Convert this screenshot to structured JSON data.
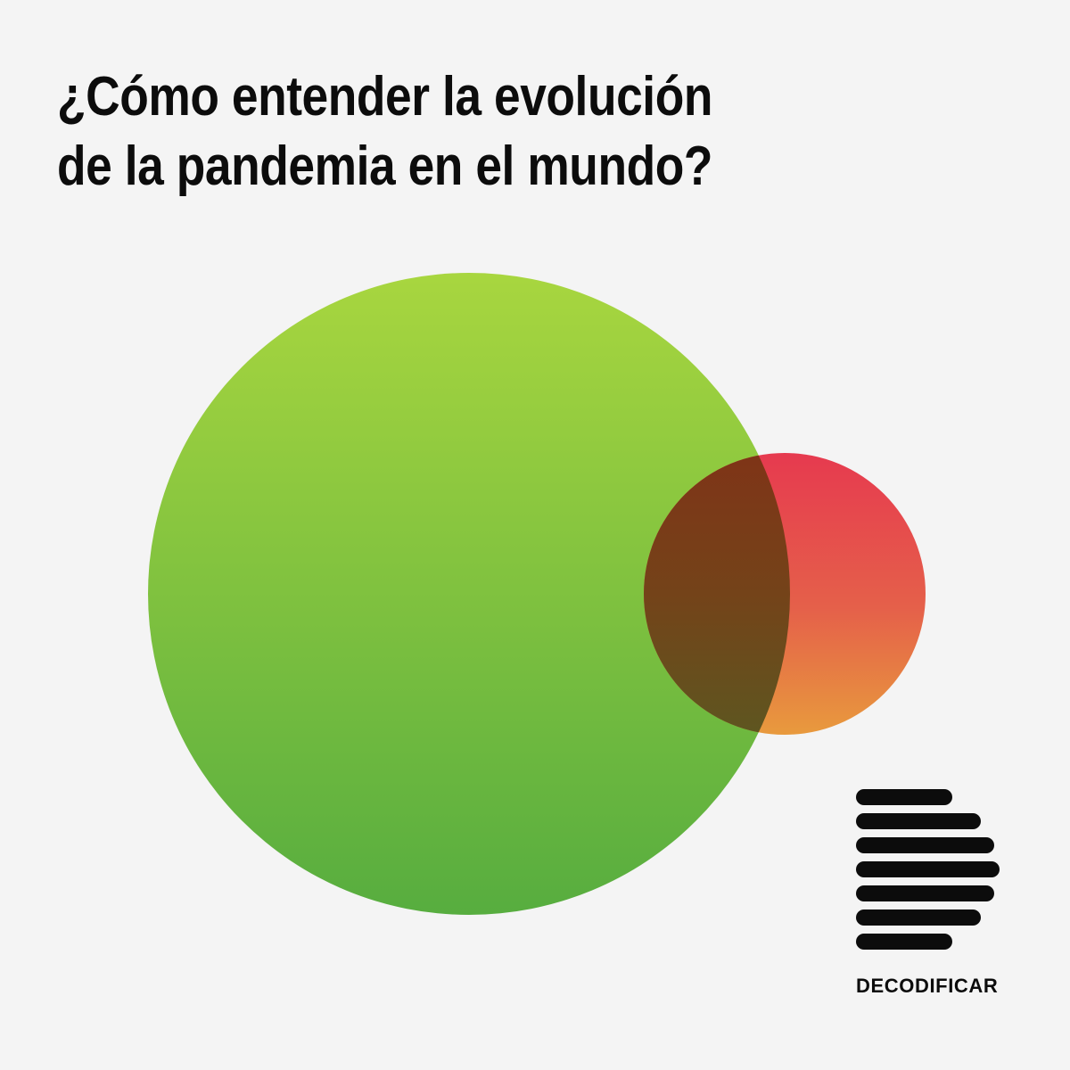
{
  "headline": {
    "line1": "¿Cómo entender la evolución",
    "line2": "de la pandemia en el mundo?"
  },
  "brand": {
    "name": "DECODIFICAR"
  },
  "colors": {
    "background": "#f4f4f4",
    "text": "#0c0c0c",
    "green_top": "#a8d63f",
    "green_bottom": "#57ad3f",
    "red_top": "#e63a4f",
    "orange_bottom": "#e89a3d",
    "overlap_top": "#7f3417",
    "overlap_bottom": "#5e5620"
  },
  "icons": {
    "logo": "decodificar-stripes-logo"
  }
}
